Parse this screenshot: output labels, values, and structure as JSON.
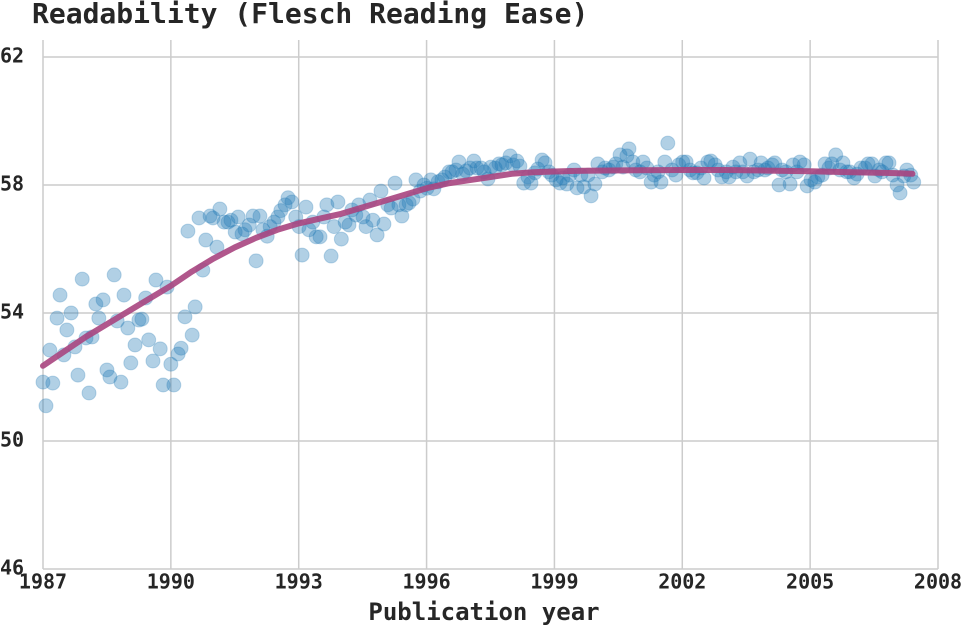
{
  "chart_data": {
    "type": "scatter",
    "title": "Readability (Flesch Reading Ease)",
    "xlabel": "Publication year",
    "xlim": [
      1987,
      2008
    ],
    "xticks": [
      1987,
      1990,
      1993,
      1996,
      1999,
      2002,
      2005,
      2008
    ],
    "ylim": [
      46,
      62
    ],
    "yticks": [
      46,
      50,
      54,
      58,
      62
    ],
    "grid": true,
    "series": [
      {
        "color": "#1f77b4",
        "mode": "points",
        "x": [
          1987.0,
          1987.07,
          1987.16,
          1987.23,
          1987.33,
          1987.4,
          1987.49,
          1987.56,
          1987.66,
          1987.75,
          1987.82,
          1987.92,
          1988.01,
          1988.08,
          1988.15,
          1988.24,
          1988.31,
          1988.41,
          1988.5,
          1988.57,
          1988.67,
          1988.74,
          1988.83,
          1988.9,
          1988.99,
          1989.06,
          1989.16,
          1989.25,
          1989.32,
          1989.41,
          1989.48,
          1989.58,
          1989.65,
          1989.75,
          1989.82,
          1989.91,
          1990.0,
          1990.07,
          1990.17,
          1990.24,
          1990.33,
          1990.4,
          1990.5,
          1990.57,
          1990.66,
          1990.75,
          1990.82,
          1990.92,
          1990.99,
          1991.08,
          1991.15,
          1991.25,
          1991.34,
          1991.41,
          1991.51,
          1991.58,
          1991.67,
          1991.74,
          1991.84,
          1991.93,
          1992.0,
          1992.09,
          1992.16,
          1992.26,
          1992.33,
          1992.42,
          1992.51,
          1992.58,
          1992.68,
          1992.75,
          1992.84,
          1992.93,
          1993.01,
          1993.08,
          1993.17,
          1993.24,
          1993.33,
          1993.41,
          1993.5,
          1993.59,
          1993.66,
          1993.76,
          1993.83,
          1993.92,
          1994.0,
          1994.09,
          1994.18,
          1994.25,
          1994.34,
          1994.41,
          1994.51,
          1994.58,
          1994.67,
          1994.74,
          1994.84,
          1994.93,
          1995.0,
          1995.09,
          1995.17,
          1995.26,
          1995.35,
          1995.42,
          1995.52,
          1995.59,
          1995.68,
          1995.75,
          1995.85,
          1995.94,
          1996.01,
          1996.1,
          1996.17,
          1996.27,
          1996.36,
          1996.43,
          1996.53,
          1996.6,
          1996.69,
          1996.76,
          1996.85,
          1996.93,
          1997.02,
          1997.11,
          1997.18,
          1997.28,
          1997.35,
          1997.44,
          1997.51,
          1997.61,
          1997.7,
          1997.77,
          1997.86,
          1997.96,
          1998.03,
          1998.12,
          1998.19,
          1998.28,
          1998.38,
          1998.45,
          1998.54,
          1998.61,
          1998.71,
          1998.78,
          1998.87,
          1998.94,
          1999.04,
          1999.13,
          1999.2,
          1999.29,
          1999.36,
          1999.46,
          1999.53,
          1999.62,
          1999.69,
          1999.79,
          1999.86,
          1999.95,
          2000.02,
          2000.12,
          2000.19,
          2000.28,
          2000.38,
          2000.44,
          2000.54,
          2000.61,
          2000.7,
          2000.75,
          2000.84,
          2000.91,
          2001.01,
          2001.08,
          2001.17,
          2001.27,
          2001.34,
          2001.43,
          2001.5,
          2001.59,
          2001.66,
          2001.76,
          2001.85,
          2001.92,
          2002.01,
          2002.09,
          2002.18,
          2002.25,
          2002.34,
          2002.44,
          2002.51,
          2002.6,
          2002.67,
          2002.77,
          2002.84,
          2002.93,
          2003.03,
          2003.1,
          2003.19,
          2003.26,
          2003.35,
          2003.42,
          2003.52,
          2003.59,
          2003.68,
          2003.78,
          2003.85,
          2003.94,
          2004.01,
          2004.11,
          2004.17,
          2004.27,
          2004.34,
          2004.43,
          2004.53,
          2004.6,
          2004.69,
          2004.76,
          2004.86,
          2004.93,
          2005.02,
          2005.11,
          2005.18,
          2005.28,
          2005.35,
          2005.44,
          2005.51,
          2005.6,
          2005.7,
          2005.77,
          2005.86,
          2005.93,
          2006.03,
          2006.1,
          2006.19,
          2006.29,
          2006.36,
          2006.45,
          2006.52,
          2006.62,
          2006.69,
          2006.78,
          2006.85,
          2006.94,
          2007.04,
          2007.11,
          2007.2,
          2007.27,
          2007.36,
          2007.43
        ],
        "values": [
          51.84,
          51.1,
          52.84,
          51.81,
          53.84,
          54.56,
          52.69,
          53.47,
          54.0,
          52.94,
          52.06,
          55.06,
          53.22,
          51.5,
          53.25,
          54.28,
          53.84,
          54.41,
          52.22,
          52.0,
          55.19,
          53.75,
          51.84,
          54.56,
          53.53,
          52.44,
          53.0,
          53.78,
          53.81,
          54.47,
          53.16,
          52.5,
          55.03,
          52.88,
          51.75,
          54.81,
          52.4,
          51.75,
          52.72,
          52.9,
          53.88,
          56.56,
          53.31,
          54.19,
          56.97,
          55.34,
          56.28,
          57.03,
          56.97,
          56.06,
          57.25,
          56.84,
          56.84,
          56.9,
          56.53,
          57.0,
          56.47,
          56.6,
          56.75,
          57.03,
          55.63,
          57.03,
          56.6,
          56.4,
          56.7,
          56.84,
          57.0,
          57.2,
          57.38,
          57.6,
          57.47,
          57.0,
          56.7,
          55.81,
          57.31,
          56.6,
          56.84,
          56.38,
          56.38,
          57.0,
          57.38,
          55.78,
          56.7,
          57.47,
          56.31,
          56.84,
          56.75,
          57.22,
          57.06,
          57.38,
          57.0,
          56.7,
          57.53,
          56.9,
          56.44,
          57.81,
          56.78,
          57.38,
          57.28,
          58.06,
          57.38,
          57.03,
          57.38,
          57.44,
          57.56,
          58.16,
          57.81,
          58.0,
          57.9,
          58.16,
          57.88,
          58.1,
          58.16,
          58.25,
          58.41,
          58.41,
          58.47,
          58.72,
          58.34,
          58.44,
          58.53,
          58.75,
          58.53,
          58.53,
          58.41,
          58.19,
          58.56,
          58.53,
          58.66,
          58.63,
          58.69,
          58.91,
          58.63,
          58.75,
          58.59,
          58.06,
          58.25,
          58.06,
          58.38,
          58.5,
          58.78,
          58.69,
          58.41,
          58.31,
          58.16,
          58.06,
          58.22,
          58.03,
          58.31,
          58.47,
          57.91,
          58.31,
          57.94,
          58.31,
          57.66,
          58.03,
          58.66,
          58.41,
          58.53,
          58.47,
          58.56,
          58.66,
          58.94,
          58.56,
          58.91,
          59.13,
          58.72,
          58.47,
          58.41,
          58.72,
          58.53,
          58.09,
          58.31,
          58.41,
          58.09,
          58.72,
          59.31,
          58.47,
          58.31,
          58.63,
          58.72,
          58.72,
          58.47,
          58.38,
          58.38,
          58.53,
          58.22,
          58.72,
          58.75,
          58.63,
          58.47,
          58.25,
          58.41,
          58.25,
          58.56,
          58.41,
          58.69,
          58.41,
          58.28,
          58.81,
          58.41,
          58.47,
          58.69,
          58.47,
          58.53,
          58.63,
          58.69,
          58.0,
          58.47,
          58.41,
          58.03,
          58.63,
          58.41,
          58.72,
          58.63,
          57.97,
          58.16,
          58.09,
          58.25,
          58.31,
          58.66,
          58.53,
          58.66,
          58.94,
          58.47,
          58.69,
          58.41,
          58.41,
          58.22,
          58.34,
          58.53,
          58.53,
          58.66,
          58.66,
          58.28,
          58.47,
          58.41,
          58.69,
          58.69,
          58.31,
          58.0,
          57.75,
          58.28,
          58.47,
          58.31,
          58.09
        ]
      },
      {
        "color": "#a8457f",
        "mode": "line",
        "x": [
          1987.0,
          1987.5,
          1988.0,
          1988.5,
          1989.0,
          1989.5,
          1990.0,
          1990.5,
          1991.0,
          1991.5,
          1992.0,
          1992.5,
          1993.0,
          1993.5,
          1994.0,
          1994.5,
          1995.0,
          1995.5,
          1996.0,
          1996.5,
          1997.0,
          1997.5,
          1998.0,
          1998.5,
          1999.0,
          1999.5,
          2000.0,
          2001.0,
          2002.0,
          2003.0,
          2004.0,
          2005.0,
          2006.0,
          2007.0,
          2007.4
        ],
        "values": [
          52.35,
          52.8,
          53.25,
          53.65,
          54.05,
          54.45,
          54.85,
          55.3,
          55.7,
          56.05,
          56.35,
          56.6,
          56.8,
          56.95,
          57.1,
          57.3,
          57.5,
          57.7,
          57.9,
          58.05,
          58.15,
          58.25,
          58.35,
          58.4,
          58.42,
          58.44,
          58.45,
          58.46,
          58.47,
          58.47,
          58.45,
          58.43,
          58.4,
          58.37,
          58.35
        ]
      }
    ]
  }
}
